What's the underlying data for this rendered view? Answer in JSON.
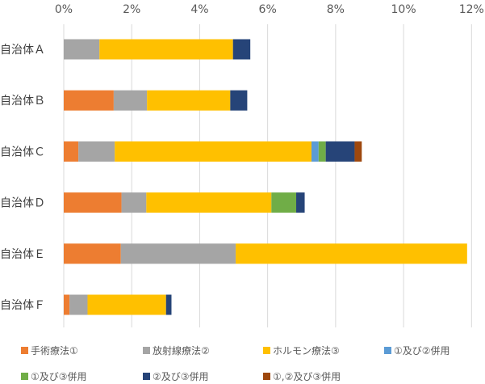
{
  "chart_data": {
    "type": "bar",
    "orientation": "horizontal",
    "stacked": true,
    "categories": [
      "自治体Ａ",
      "自治体Ｂ",
      "自治体Ｃ",
      "自治体Ｄ",
      "自治体Ｅ",
      "自治体Ｆ"
    ],
    "xlim": [
      0,
      12
    ],
    "xticks": [
      "0%",
      "2%",
      "4%",
      "6%",
      "8%",
      "10%",
      "12%"
    ],
    "grid": true,
    "legend_position": "bottom",
    "series": [
      {
        "name": "手術療法①",
        "color": "#ED7D31",
        "values": [
          0,
          1.47,
          0.43,
          1.7,
          1.68,
          0.17
        ]
      },
      {
        "name": "放射線療法②",
        "color": "#A5A5A5",
        "values": [
          1.05,
          0.98,
          1.07,
          0.73,
          3.38,
          0.53
        ]
      },
      {
        "name": "ホルモン療法③",
        "color": "#FFC000",
        "values": [
          3.93,
          2.45,
          5.79,
          3.68,
          6.81,
          2.31
        ]
      },
      {
        "name": "①及び②併用",
        "color": "#5B9BD5",
        "values": [
          0,
          0,
          0.21,
          0,
          0,
          0
        ]
      },
      {
        "name": "①及び③併用",
        "color": "#70AD47",
        "values": [
          0,
          0,
          0.21,
          0.73,
          0,
          0
        ]
      },
      {
        "name": "②及び③併用",
        "color": "#264478",
        "values": [
          0.51,
          0.5,
          0.85,
          0.25,
          0,
          0.16
        ]
      },
      {
        "name": "①,②及び③併用",
        "color": "#9E480E",
        "values": [
          0,
          0,
          0.21,
          0,
          0,
          0
        ]
      }
    ]
  }
}
